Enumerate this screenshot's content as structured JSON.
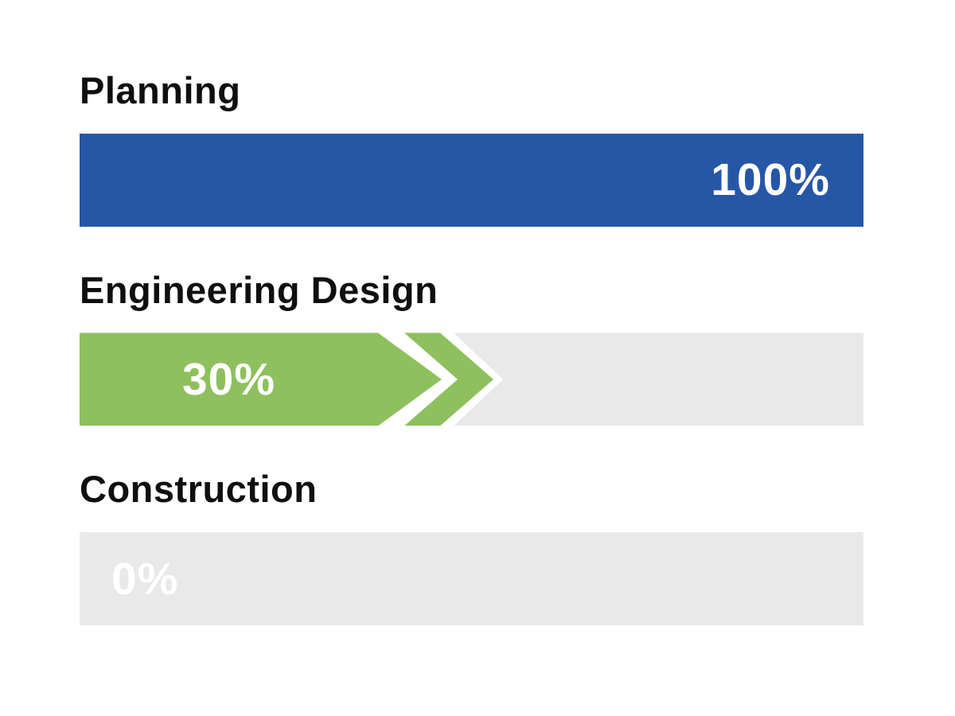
{
  "chart_data": {
    "type": "bar",
    "orientation": "horizontal",
    "title": "",
    "categories": [
      "Planning",
      "Engineering Design",
      "Construction"
    ],
    "values": [
      100,
      30,
      0
    ],
    "value_labels": [
      "100%",
      "30%",
      "0%"
    ],
    "xlim": [
      0,
      100
    ],
    "grid": false,
    "legend": false,
    "value_label_positions": [
      "inside-right",
      "inside-center-of-fill",
      "inside-left"
    ],
    "colors": {
      "planning_fill": "#2657a6",
      "engineering_fill": "#8ec05e",
      "track_empty": "#e9e9e9",
      "value_text": "#ffffff",
      "category_label_text": "#0f0f0f",
      "background": "#ffffff"
    },
    "notes": "Engineering Design fill ends in a rightward arrow point followed by a detached chevron glyph"
  }
}
